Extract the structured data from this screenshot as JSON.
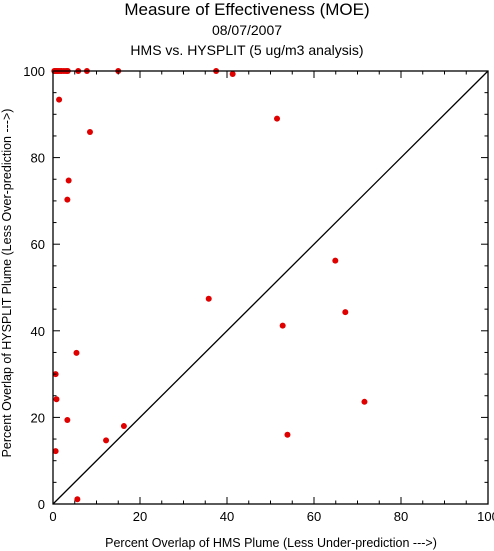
{
  "chart_data": {
    "type": "scatter",
    "title": "Measure of Effectiveness (MOE)",
    "subtitle": "08/07/2007",
    "subtitle2": "HMS vs. HYSPLIT  (5 ug/m3 analysis)",
    "xlabel": "Percent Overlap of HMS Plume (Less Under-prediction --->)",
    "ylabel": "Percent Overlap of HYSPLIT Plume (Less Over-prediction --->)",
    "xlim": [
      0,
      100
    ],
    "ylim": [
      0,
      100
    ],
    "xticks": [
      "0",
      "20",
      "40",
      "60",
      "80",
      "100"
    ],
    "yticks": [
      "0",
      "20",
      "40",
      "60",
      "80",
      "100"
    ],
    "reference_line": "y = x",
    "grid": false,
    "point_color": "#e00000",
    "points": [
      {
        "x": 0.3,
        "y": 100
      },
      {
        "x": 0.6,
        "y": 100
      },
      {
        "x": 0.9,
        "y": 100
      },
      {
        "x": 1.2,
        "y": 100
      },
      {
        "x": 1.6,
        "y": 100
      },
      {
        "x": 2.0,
        "y": 100
      },
      {
        "x": 2.5,
        "y": 100
      },
      {
        "x": 3.0,
        "y": 100
      },
      {
        "x": 3.4,
        "y": 100
      },
      {
        "x": 5.8,
        "y": 100
      },
      {
        "x": 7.8,
        "y": 100
      },
      {
        "x": 15.0,
        "y": 100
      },
      {
        "x": 37.5,
        "y": 100
      },
      {
        "x": 41.3,
        "y": 99.3
      },
      {
        "x": 1.4,
        "y": 93.4
      },
      {
        "x": 51.5,
        "y": 89.0
      },
      {
        "x": 8.5,
        "y": 85.9
      },
      {
        "x": 3.6,
        "y": 74.7
      },
      {
        "x": 3.3,
        "y": 70.3
      },
      {
        "x": 64.9,
        "y": 56.2
      },
      {
        "x": 35.8,
        "y": 47.4
      },
      {
        "x": 67.2,
        "y": 44.3
      },
      {
        "x": 52.8,
        "y": 41.2
      },
      {
        "x": 5.4,
        "y": 34.9
      },
      {
        "x": 0.6,
        "y": 30.0
      },
      {
        "x": 0.8,
        "y": 24.2
      },
      {
        "x": 71.6,
        "y": 23.6
      },
      {
        "x": 3.3,
        "y": 19.4
      },
      {
        "x": 16.3,
        "y": 18.0
      },
      {
        "x": 53.9,
        "y": 16.0
      },
      {
        "x": 12.2,
        "y": 14.7
      },
      {
        "x": 0.6,
        "y": 12.2
      },
      {
        "x": 5.6,
        "y": 1.1
      }
    ]
  }
}
